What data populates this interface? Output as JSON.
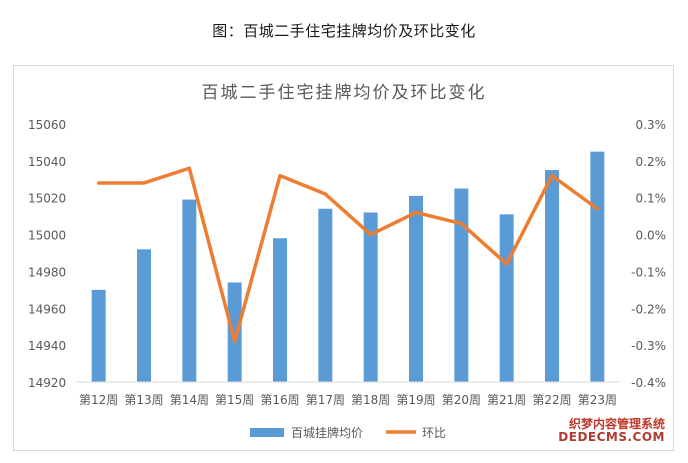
{
  "caption": "图：百城二手住宅挂牌均价及环比变化",
  "watermark": {
    "line1": "织梦内容管理系统",
    "line2": "DEDECMS.COM"
  },
  "colors": {
    "bar": "#5b9bd5",
    "line": "#ed7d31",
    "grid": "#d9d9d9",
    "text": "#595959"
  },
  "chart_data": {
    "type": "bar",
    "title": "百城二手住宅挂牌均价及环比变化",
    "categories": [
      "第12周",
      "第13周",
      "第14周",
      "第15周",
      "第16周",
      "第17周",
      "第18周",
      "第19周",
      "第20周",
      "第21周",
      "第22周",
      "第23周"
    ],
    "series": [
      {
        "name": "百城挂牌均价",
        "type": "bar",
        "axis": "left",
        "values": [
          14970,
          14992,
          15019,
          14974,
          14998,
          15014,
          15012,
          15021,
          15025,
          15011,
          15035,
          15045
        ]
      },
      {
        "name": "环比",
        "type": "line",
        "axis": "right",
        "values": [
          0.14,
          0.14,
          0.18,
          -0.29,
          0.16,
          0.11,
          0.0,
          0.06,
          0.03,
          -0.08,
          0.16,
          0.07
        ]
      }
    ],
    "y_left": {
      "min": 14920,
      "max": 15060,
      "step": 20,
      "ticks": [
        "14920",
        "14940",
        "14960",
        "14980",
        "15000",
        "15020",
        "15040",
        "15060"
      ]
    },
    "y_right": {
      "min": -0.4,
      "max": 0.3,
      "step": 0.1,
      "ticks": [
        "-0.4%",
        "-0.3%",
        "-0.2%",
        "-0.1%",
        "0.0%",
        "0.1%",
        "0.2%",
        "0.3%"
      ]
    },
    "grid": false,
    "legend_position": "bottom"
  }
}
